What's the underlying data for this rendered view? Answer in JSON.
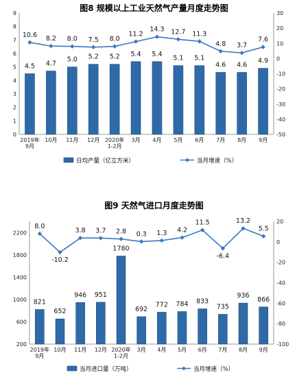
{
  "charts": [
    {
      "title": "图8  规模以上工业天然气产量月度走势图",
      "type": "bar+line",
      "categories": [
        "2019年 9月",
        "10月",
        "11月",
        "12月",
        "2020年 1-2月",
        "3月",
        "4月",
        "5月",
        "6月",
        "7月",
        "8月",
        "9月"
      ],
      "bar_series": {
        "name": "日均产量（亿立方米）",
        "values": [
          4.5,
          4.7,
          5.0,
          5.2,
          5.2,
          5.4,
          5.4,
          5.1,
          5.1,
          4.6,
          4.6,
          4.9
        ]
      },
      "line_series": {
        "name": "当月增速（%）",
        "values": [
          10.6,
          8.2,
          8.0,
          7.5,
          8.0,
          11.2,
          14.3,
          12.7,
          11.3,
          4.8,
          3.7,
          7.6
        ]
      },
      "y_left": {
        "min": 0,
        "max": 9,
        "ticks": [
          0,
          1,
          2,
          3,
          4,
          5,
          6,
          7,
          8,
          9
        ]
      },
      "y_right": {
        "min": -50,
        "max": 30,
        "ticks": [
          30,
          20,
          10,
          0,
          -10,
          -20,
          -30,
          -40,
          -50
        ]
      },
      "bar_labels": [
        "4.5",
        "4.7",
        "5.0",
        "5.2",
        "5.2",
        "5.4",
        "5.4",
        "5.1",
        "5.1",
        "4.6",
        "4.6",
        "4.9"
      ],
      "line_labels": [
        "10.6",
        "8.2",
        "8.0",
        "7.5",
        "8.0",
        "11.2",
        "14.3",
        "12.7",
        "11.3",
        "4.8",
        "3.7",
        "7.6"
      ],
      "legend_position": "bottom",
      "grid": false
    },
    {
      "title": "图9  天然气进口月度走势图",
      "type": "bar+line",
      "categories": [
        "2019年 9月",
        "10月",
        "11月",
        "12月",
        "2020年 1-2月",
        "3月",
        "4月",
        "5月",
        "6月",
        "7月",
        "8月",
        "9月"
      ],
      "bar_series": {
        "name": "当月进口量（万吨）",
        "values": [
          821,
          652,
          946,
          951,
          1780,
          692,
          772,
          784,
          833,
          735,
          936,
          866
        ]
      },
      "line_series": {
        "name": "当月增速（%）",
        "values": [
          8.0,
          -10.2,
          3.8,
          3.7,
          2.8,
          0.3,
          1.3,
          4.2,
          11.5,
          -6.4,
          13.2,
          5.5
        ]
      },
      "y_left": {
        "min": 200,
        "max": 2400,
        "ticks": [
          200,
          600,
          1000,
          1400,
          1800,
          2200
        ]
      },
      "y_right": {
        "min": -100,
        "max": 20,
        "ticks": [
          20,
          0,
          -20,
          -40,
          -60,
          -80,
          -100
        ]
      },
      "bar_labels": [
        "821",
        "652",
        "946",
        "951",
        "1780",
        "692",
        "772",
        "784",
        "833",
        "735",
        "936",
        "866"
      ],
      "line_labels": [
        "8.0",
        "-10.2",
        "3.8",
        "3.7",
        "2.8",
        "0.3",
        "1.3",
        "4.2",
        "11.5",
        "-6.4",
        "13.2",
        "5.5"
      ],
      "legend_position": "bottom",
      "grid": false
    }
  ],
  "colors": {
    "bar_fill": "#2f6aa8",
    "bar_stroke": "#1d4f85",
    "line": "#3a78c2",
    "axis": "#999999"
  }
}
